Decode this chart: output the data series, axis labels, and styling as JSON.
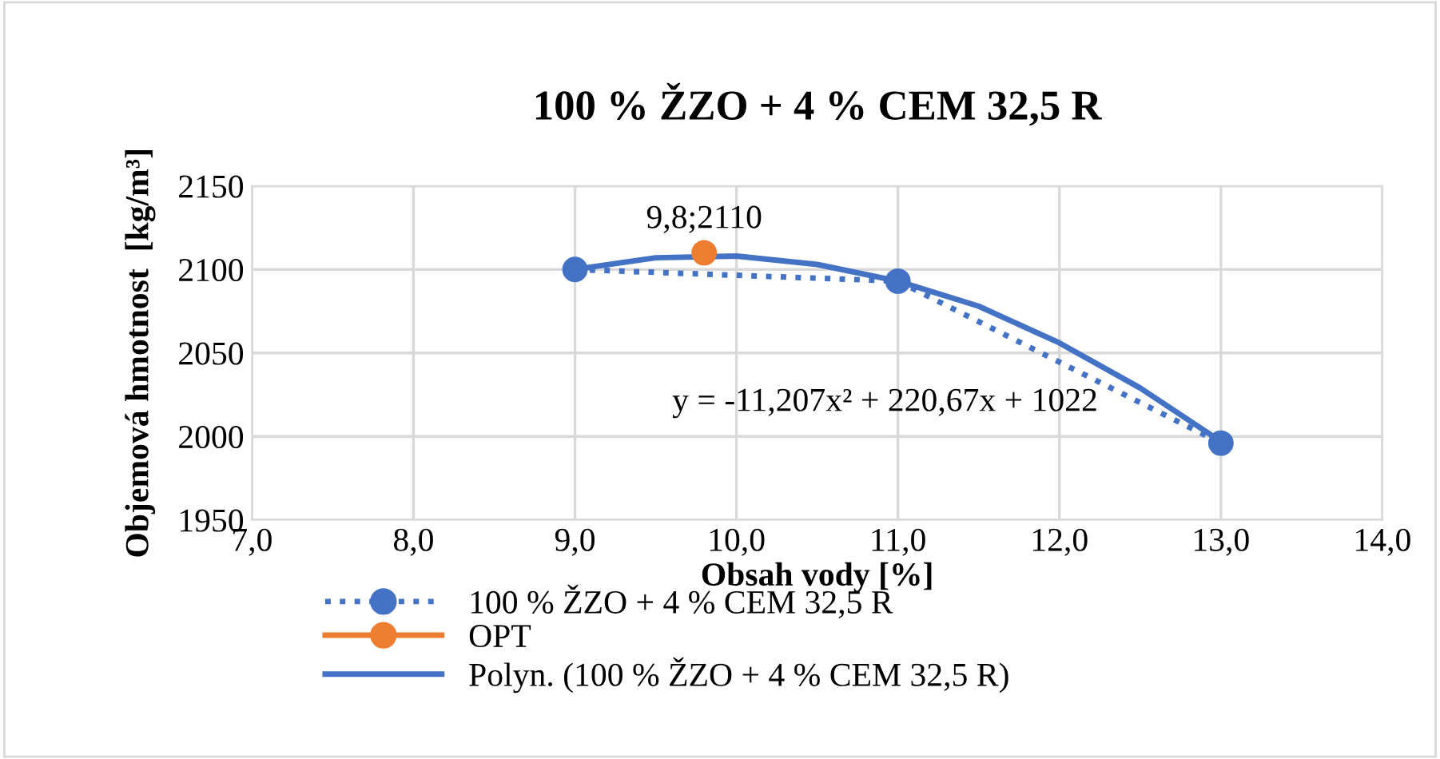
{
  "chart_data": {
    "type": "line",
    "title": "100 % ŽZO + 4 % CEM 32,5 R",
    "xlabel": "Obsah vody [%]",
    "ylabel": "Objemová hmotnost  [kg/m³]",
    "xlim": [
      7,
      14
    ],
    "xticks": [
      {
        "value": 7,
        "label": "7,0"
      },
      {
        "value": 8,
        "label": "8,0"
      },
      {
        "value": 9,
        "label": "9,0"
      },
      {
        "value": 10,
        "label": "10,0"
      },
      {
        "value": 11,
        "label": "11,0"
      },
      {
        "value": 12,
        "label": "12,0"
      },
      {
        "value": 13,
        "label": "13,0"
      },
      {
        "value": 14,
        "label": "14,0"
      }
    ],
    "ylim": [
      1950,
      2150
    ],
    "yticks": [
      1950,
      2000,
      2050,
      2100,
      2150
    ],
    "grid": true,
    "legend": "bottom",
    "annotations": [
      "y = -11,207x² + 220,67x + 1022"
    ],
    "series": [
      {
        "name": "100 % ŽZO + 4 % CEM 32,5 R",
        "color": "#4472c4",
        "marker": "circle",
        "line_style": "dotted",
        "x": [
          9,
          11,
          13
        ],
        "values": [
          2100,
          2093,
          1996
        ]
      },
      {
        "name": "OPT",
        "color": "#ed7d31",
        "marker": "circle",
        "line_style": "solid",
        "x": [
          9.8
        ],
        "values": [
          2110
        ],
        "value_labels": [
          "9,8;2110"
        ]
      },
      {
        "name": "Polyn. (100 % ŽZO + 4 % CEM 32,5 R)",
        "color": "#4472c4",
        "marker": "none",
        "line_style": "solid",
        "x": [
          9,
          9.5,
          10,
          10.5,
          11,
          11.5,
          12,
          12.5,
          13
        ],
        "values": [
          2100,
          2107,
          2108,
          2103,
          2093,
          2078,
          2056,
          2029,
          1997
        ]
      }
    ]
  }
}
